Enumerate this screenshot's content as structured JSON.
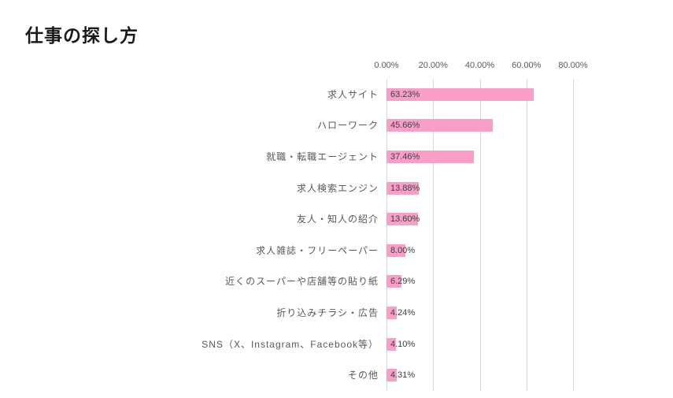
{
  "page_title": "仕事の探し方",
  "chart_data": {
    "type": "bar",
    "orientation": "horizontal",
    "title": "仕事の探し方",
    "categories": [
      "求人サイト",
      "ハローワーク",
      "就職・転職エージェント",
      "求人検索エンジン",
      "友人・知人の紹介",
      "求人雑誌・フリーペーパー",
      "近くのスーパーや店舗等の貼り紙",
      "折り込みチラシ・広告",
      "SNS（X、Instagram、Facebook等）",
      "その他"
    ],
    "values": [
      63.23,
      45.66,
      37.46,
      13.88,
      13.6,
      8.0,
      6.29,
      4.24,
      4.1,
      4.31
    ],
    "value_labels": [
      "63.23%",
      "45.66%",
      "37.46%",
      "13.88%",
      "13.60%",
      "8.00%",
      "6.29%",
      "4.24%",
      "4.10%",
      "4.31%"
    ],
    "x_ticks": [
      "0.00%",
      "20.00%",
      "40.00%",
      "60.00%",
      "80.00%"
    ],
    "xlim": [
      0,
      80
    ],
    "xlabel": "",
    "ylabel": "",
    "grid": true,
    "legend": false,
    "value_label_position": "inside-base",
    "bar_color": "#fa9ec8",
    "gridline_color": "#d9d9d9",
    "category_label_color": "#595959",
    "tick_label_color": "#595959",
    "value_label_color": "#404040",
    "title_color": "#1a1a1a",
    "background_color": "#ffffff"
  }
}
